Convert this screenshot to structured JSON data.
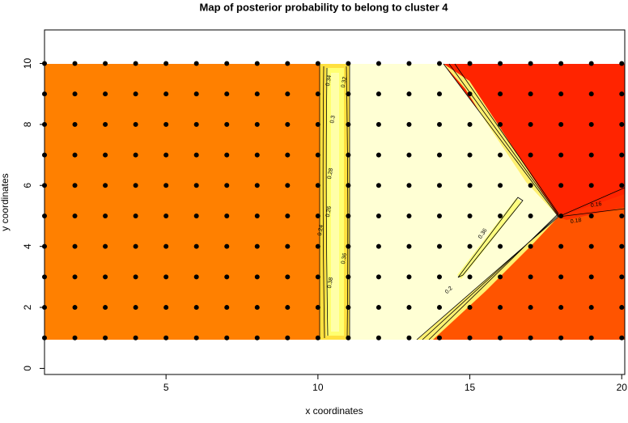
{
  "chart_data": {
    "type": "scatter",
    "title": "Map of posterior probability to belong to cluster  4",
    "x_label": "x coordinates",
    "y_label": "y coordinates",
    "grid_x": [
      1,
      2,
      3,
      4,
      5,
      6,
      7,
      8,
      9,
      10,
      11,
      12,
      13,
      14,
      15,
      16,
      17,
      18,
      19,
      20
    ],
    "grid_y": [
      1,
      2,
      3,
      4,
      5,
      6,
      7,
      8,
      9,
      10
    ],
    "point_color": "#000000",
    "xlim": [
      1,
      20.1
    ],
    "ylim": [
      -0.2,
      11.1
    ],
    "xticks": [
      5,
      10,
      15,
      20
    ],
    "yticks": [
      0,
      2,
      4,
      6,
      8,
      10
    ],
    "contour_labels": [
      "0.34",
      "0.32",
      "0.3",
      "0.28",
      "0.26",
      "0.24",
      "0.36",
      "0.38",
      "0.36",
      "0.2",
      "0.18",
      "0.16"
    ]
  }
}
